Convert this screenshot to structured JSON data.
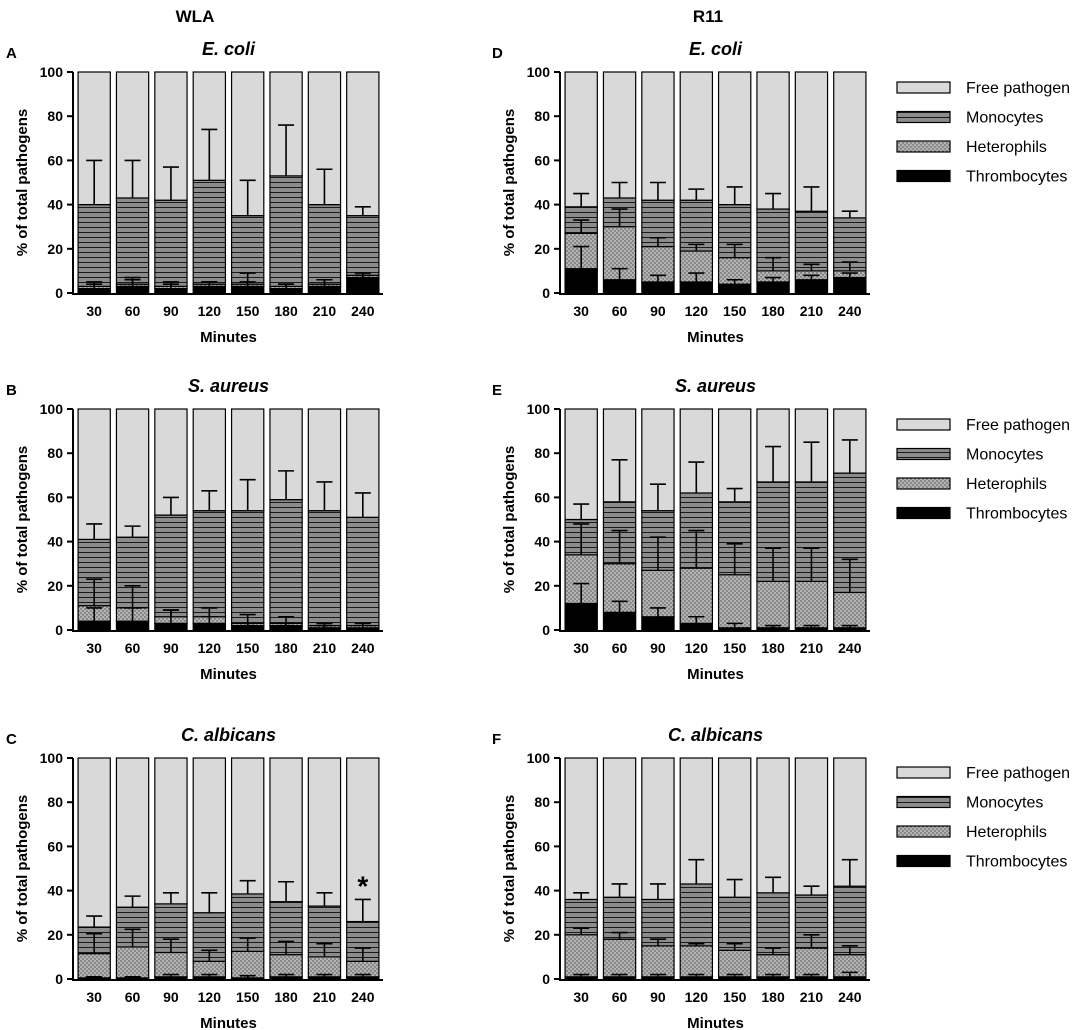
{
  "columns": {
    "left": "WLA",
    "right": "R11"
  },
  "legend": [
    {
      "key": "free",
      "label": "Free pathogen"
    },
    {
      "key": "mono",
      "label": "Monocytes"
    },
    {
      "key": "het",
      "label": "Heterophils"
    },
    {
      "key": "thr",
      "label": "Thrombocytes"
    }
  ],
  "colors": {
    "free": "#d9d9d9",
    "mono": "#8c8c8c",
    "het": "#b3b3b3",
    "thr": "#000000",
    "stroke": "#000000"
  },
  "chart_data": [
    {
      "panel": "A",
      "column": "WLA",
      "type": "bar",
      "stacked": true,
      "title": "E. coli",
      "xlabel": "Minutes",
      "ylabel": "% of total pathogens",
      "ylim": [
        0,
        100
      ],
      "yticks": [
        0,
        20,
        40,
        60,
        80,
        100
      ],
      "categories": [
        "30",
        "60",
        "90",
        "120",
        "150",
        "180",
        "210",
        "240"
      ],
      "series": [
        {
          "name": "Thrombocytes",
          "values": [
            2,
            3,
            2,
            3,
            3,
            2,
            3,
            7
          ],
          "err": [
            2,
            4,
            2,
            2,
            2,
            2,
            3,
            1
          ]
        },
        {
          "name": "Heterophils",
          "values": [
            1,
            1,
            1,
            1,
            1,
            1,
            1,
            1
          ],
          "err": [
            2,
            2,
            2,
            1,
            5,
            1,
            2,
            1
          ]
        },
        {
          "name": "Monocytes",
          "values": [
            37,
            39,
            39,
            47,
            31,
            50,
            36,
            27
          ],
          "err": [
            20,
            17,
            15,
            23,
            16,
            23,
            16,
            4
          ]
        },
        {
          "name": "Free pathogen",
          "values": [
            60,
            57,
            58,
            49,
            65,
            47,
            60,
            65
          ]
        }
      ],
      "annotations": []
    },
    {
      "panel": "B",
      "column": "WLA",
      "type": "bar",
      "stacked": true,
      "title": "S. aureus",
      "xlabel": "Minutes",
      "ylabel": "% of total pathogens",
      "ylim": [
        0,
        100
      ],
      "yticks": [
        0,
        20,
        40,
        60,
        80,
        100
      ],
      "categories": [
        "30",
        "60",
        "90",
        "120",
        "150",
        "180",
        "210",
        "240"
      ],
      "series": [
        {
          "name": "Thrombocytes",
          "values": [
            4,
            4,
            3,
            3,
            2,
            2,
            1,
            1
          ],
          "err": [
            6,
            6,
            6,
            3,
            1,
            1,
            1,
            2
          ]
        },
        {
          "name": "Heterophils",
          "values": [
            7,
            6,
            3,
            3,
            1,
            1,
            1,
            1
          ],
          "err": [
            12,
            10,
            3,
            4,
            4,
            3,
            1,
            1
          ]
        },
        {
          "name": "Monocytes",
          "values": [
            30,
            32,
            46,
            48,
            51,
            56,
            52,
            49
          ],
          "err": [
            7,
            5,
            8,
            9,
            14,
            13,
            13,
            11
          ]
        },
        {
          "name": "Free pathogen",
          "values": [
            59,
            58,
            48,
            46,
            46,
            41,
            46,
            49
          ]
        }
      ],
      "annotations": []
    },
    {
      "panel": "C",
      "column": "WLA",
      "type": "bar",
      "stacked": true,
      "title": "C. albicans",
      "xlabel": "Minutes",
      "ylabel": "% of total pathogens",
      "ylim": [
        0,
        100
      ],
      "yticks": [
        0,
        20,
        40,
        60,
        80,
        100
      ],
      "categories": [
        "30",
        "60",
        "90",
        "120",
        "150",
        "180",
        "210",
        "240"
      ],
      "series": [
        {
          "name": "Thrombocytes",
          "values": [
            0.5,
            0.5,
            1,
            1,
            0.5,
            1,
            1,
            1
          ],
          "err": [
            0.5,
            0.5,
            1,
            1,
            1,
            1,
            1,
            1
          ]
        },
        {
          "name": "Heterophils",
          "values": [
            11,
            14,
            11,
            7,
            12,
            10,
            9,
            7
          ],
          "err": [
            9,
            8,
            6,
            5,
            6,
            6,
            6,
            6
          ]
        },
        {
          "name": "Monocytes",
          "values": [
            12,
            18,
            22,
            22,
            26,
            24,
            23,
            18
          ],
          "err": [
            5,
            5,
            5,
            9,
            6,
            9,
            6,
            10
          ]
        },
        {
          "name": "Free pathogen",
          "values": [
            76.5,
            67.5,
            66,
            70,
            61.5,
            65,
            67,
            74
          ]
        }
      ],
      "annotations": [
        {
          "category": "240",
          "text": "*"
        }
      ]
    },
    {
      "panel": "D",
      "column": "R11",
      "type": "bar",
      "stacked": true,
      "title": "E. coli",
      "xlabel": "Minutes",
      "ylabel": "% of total pathogens",
      "ylim": [
        0,
        100
      ],
      "yticks": [
        0,
        20,
        40,
        60,
        80,
        100
      ],
      "categories": [
        "30",
        "60",
        "90",
        "120",
        "150",
        "180",
        "210",
        "240"
      ],
      "series": [
        {
          "name": "Thrombocytes",
          "values": [
            11,
            6,
            5,
            5,
            4,
            5,
            6,
            7
          ],
          "err": [
            10,
            5,
            3,
            4,
            2,
            2,
            2,
            2
          ]
        },
        {
          "name": "Heterophils",
          "values": [
            16,
            24,
            16,
            14,
            12,
            5,
            4,
            3
          ],
          "err": [
            6,
            8,
            4,
            3,
            6,
            6,
            3,
            4
          ]
        },
        {
          "name": "Monocytes",
          "values": [
            12,
            13,
            21,
            23,
            24,
            28,
            27,
            24
          ],
          "err": [
            6,
            7,
            8,
            5,
            8,
            7,
            11,
            3
          ]
        },
        {
          "name": "Free pathogen",
          "values": [
            61,
            57,
            58,
            58,
            60,
            62,
            63,
            66
          ]
        }
      ],
      "annotations": []
    },
    {
      "panel": "E",
      "column": "R11",
      "type": "bar",
      "stacked": true,
      "title": "S. aureus",
      "xlabel": "Minutes",
      "ylabel": "% of total pathogens",
      "ylim": [
        0,
        100
      ],
      "yticks": [
        0,
        20,
        40,
        60,
        80,
        100
      ],
      "categories": [
        "30",
        "60",
        "90",
        "120",
        "150",
        "180",
        "210",
        "240"
      ],
      "series": [
        {
          "name": "Thrombocytes",
          "values": [
            12,
            8,
            6,
            3,
            1,
            1,
            1,
            1
          ],
          "err": [
            9,
            5,
            4,
            3,
            2,
            1,
            1,
            1
          ]
        },
        {
          "name": "Heterophils",
          "values": [
            22,
            22,
            21,
            25,
            24,
            21,
            21,
            16
          ],
          "err": [
            14,
            15,
            15,
            17,
            14,
            15,
            15,
            15
          ]
        },
        {
          "name": "Monocytes",
          "values": [
            16,
            28,
            27,
            34,
            33,
            45,
            45,
            54
          ],
          "err": [
            7,
            19,
            12,
            14,
            6,
            16,
            18,
            15
          ]
        },
        {
          "name": "Free pathogen",
          "values": [
            50,
            42,
            46,
            38,
            42,
            33,
            33,
            29
          ]
        }
      ],
      "annotations": []
    },
    {
      "panel": "F",
      "column": "R11",
      "type": "bar",
      "stacked": true,
      "title": "C. albicans",
      "xlabel": "Minutes",
      "ylabel": "% of total pathogens",
      "ylim": [
        0,
        100
      ],
      "yticks": [
        0,
        20,
        40,
        60,
        80,
        100
      ],
      "categories": [
        "30",
        "60",
        "90",
        "120",
        "150",
        "180",
        "210",
        "240"
      ],
      "series": [
        {
          "name": "Thrombocytes",
          "values": [
            1,
            1,
            1,
            1,
            1,
            1,
            1,
            1
          ],
          "err": [
            1,
            1,
            1,
            1,
            1,
            1,
            1,
            2
          ]
        },
        {
          "name": "Heterophils",
          "values": [
            19,
            17,
            14,
            14,
            12,
            10,
            13,
            10
          ],
          "err": [
            3,
            3,
            3,
            1,
            3,
            3,
            6,
            4
          ]
        },
        {
          "name": "Monocytes",
          "values": [
            16,
            19,
            21,
            28,
            24,
            28,
            24,
            31
          ],
          "err": [
            3,
            6,
            7,
            11,
            8,
            7,
            4,
            12
          ]
        },
        {
          "name": "Free pathogen",
          "values": [
            64,
            63,
            64,
            57,
            63,
            61,
            62,
            58
          ]
        }
      ],
      "annotations": []
    }
  ]
}
